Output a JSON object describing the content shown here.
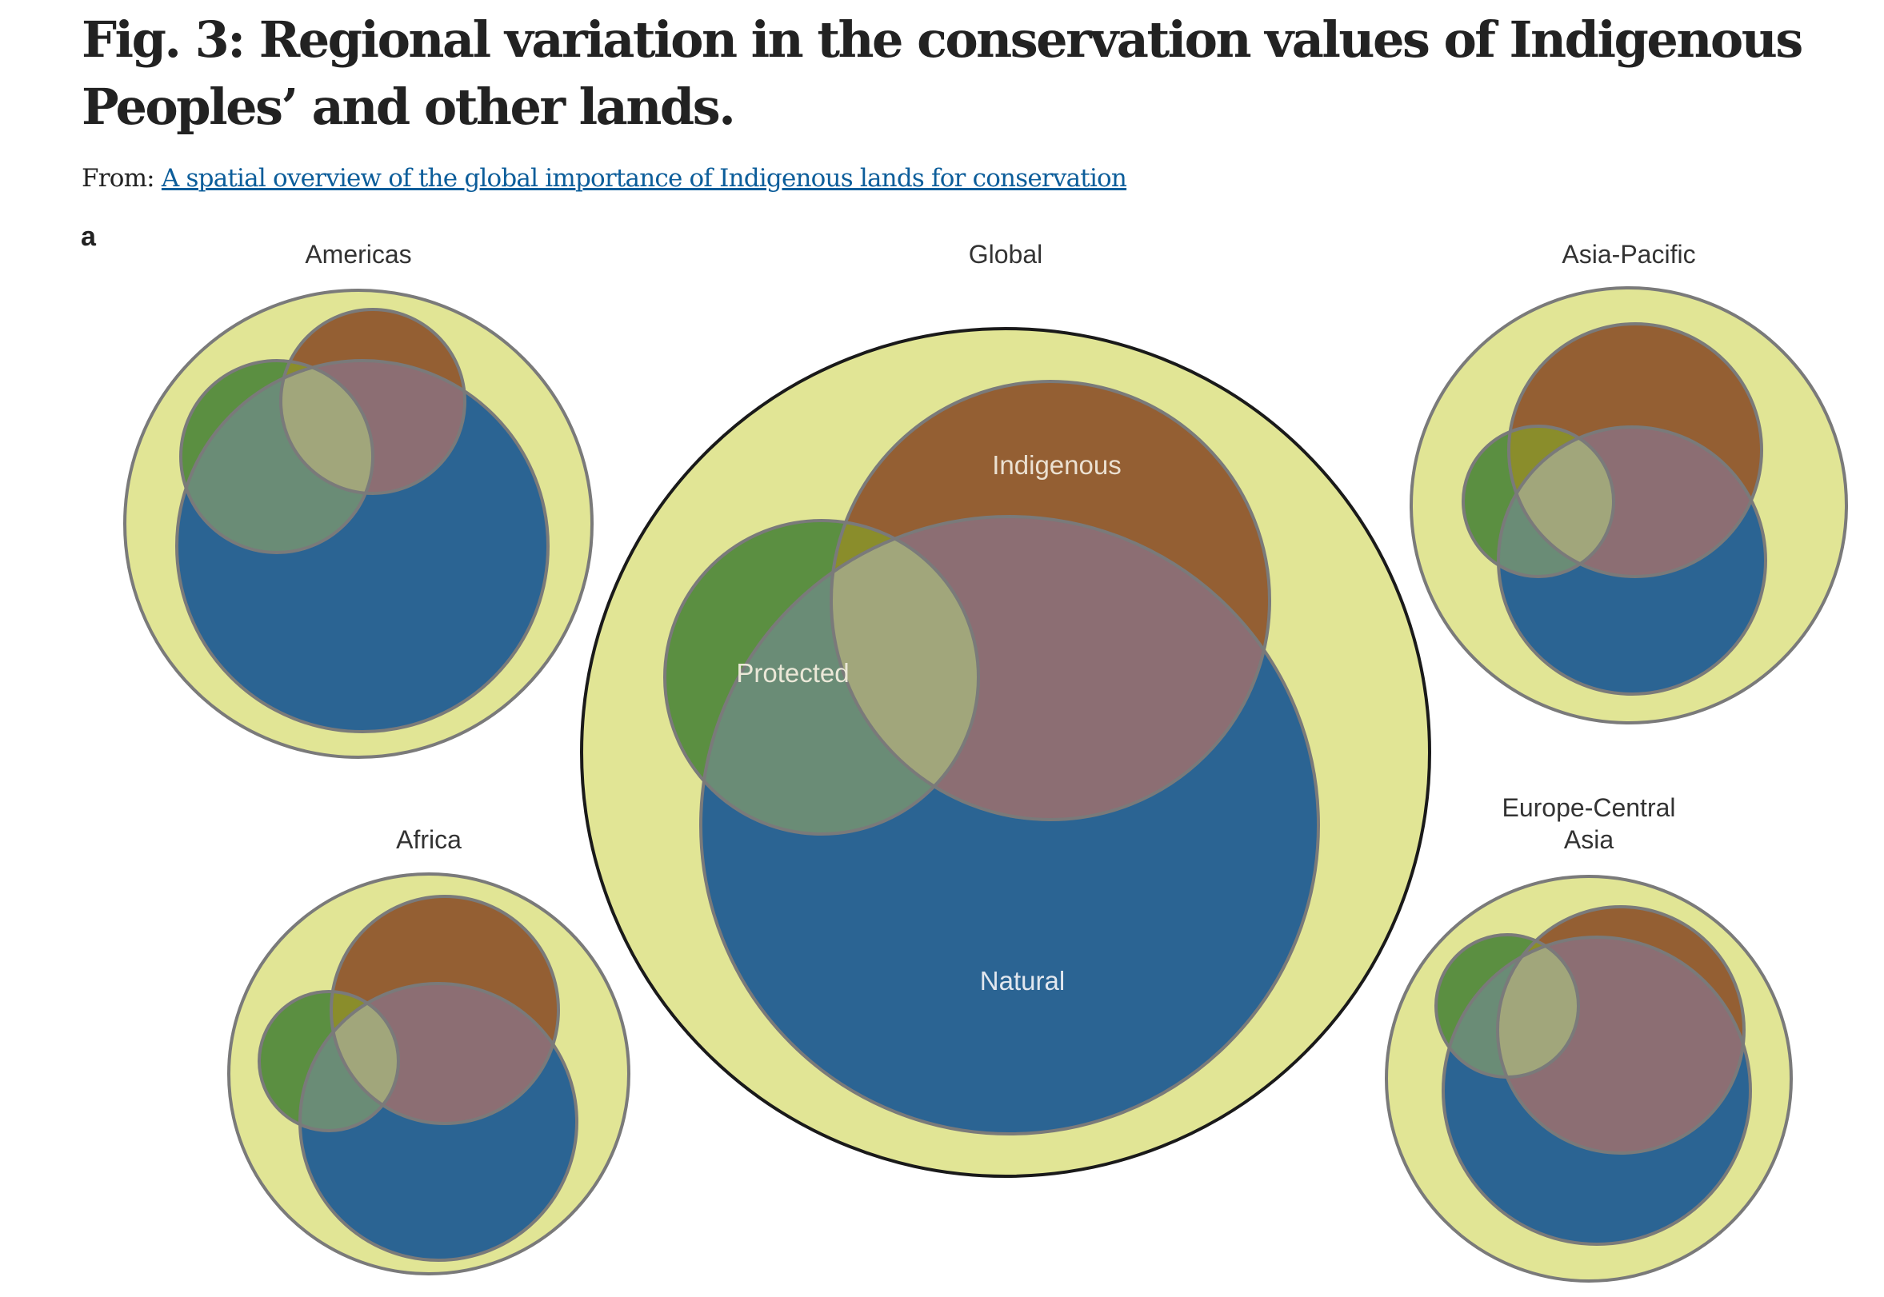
{
  "figure": {
    "title": "Fig. 3: Regional variation in the conservation values of Indigenous Peoples’ and other lands.",
    "from_label": "From:",
    "source_link_text": "A spatial overview of the global importance of Indigenous lands for conservation",
    "panel_label": "a"
  },
  "legend_sets": {
    "indigenous": "Indigenous",
    "protected": "Protected",
    "natural": "Natural"
  },
  "regions": [
    {
      "id": "americas",
      "label": "Americas"
    },
    {
      "id": "global",
      "label": "Global"
    },
    {
      "id": "asia_pacific",
      "label": "Asia-Pacific"
    },
    {
      "id": "africa",
      "label": "Africa"
    },
    {
      "id": "europe_central_asia",
      "label_line1": "Europe-Central",
      "label_line2": "Asia"
    }
  ],
  "colors": {
    "land": "#e1e595",
    "natural": "#2b6493",
    "indigenous": "#945f33",
    "protected": "#5b8f41",
    "indigenous_natural": "#8c6e73",
    "protected_natural": "#6a8c76",
    "indigenous_protected": "#8a8d2b",
    "all_three": "#a1a67b",
    "outline": "#7a7a7a",
    "global_outline": "#1a1a1a",
    "label_light": "#e8e2d2"
  }
}
